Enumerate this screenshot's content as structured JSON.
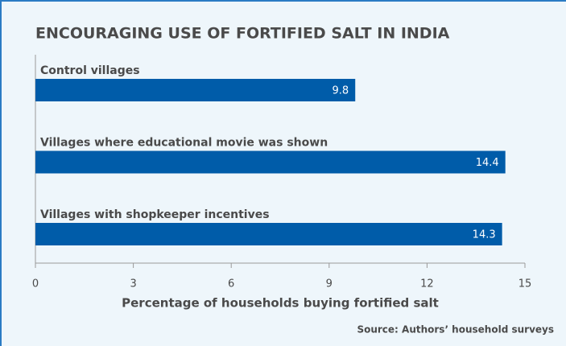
{
  "chart_data": {
    "type": "bar",
    "orientation": "horizontal",
    "title": "ENCOURAGING USE OF FORTIFIED SALT IN INDIA",
    "categories": [
      "Control villages",
      "Villages where educational movie was shown",
      "Villages with shopkeeper incentives"
    ],
    "values": [
      9.8,
      14.4,
      14.3
    ],
    "color": "#005ca9",
    "xlim": [
      0,
      15
    ],
    "xticks": [
      0,
      3,
      6,
      9,
      12,
      15
    ],
    "xlabel": "Percentage of households buying fortified salt",
    "source": "Source: Authors’ household surveys"
  }
}
